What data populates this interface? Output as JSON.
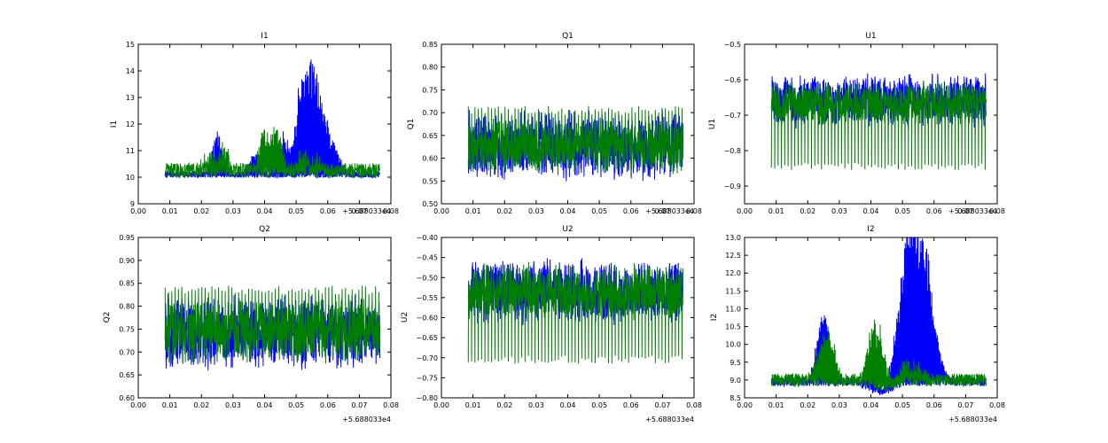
{
  "chart_data": [
    {
      "type": "line",
      "title": "I1",
      "xlabel": "",
      "ylabel": "I1",
      "xlim": [
        0.0,
        0.08
      ],
      "ylim": [
        9,
        15
      ],
      "x_ticks": [
        "0.00",
        "0.01",
        "0.02",
        "0.03",
        "0.04",
        "0.05",
        "0.06",
        "0.07",
        "0.08"
      ],
      "y_ticks": [
        "9",
        "10",
        "11",
        "12",
        "13",
        "14",
        "15"
      ],
      "x_offset_label": "+5.688033e4",
      "x_range": [
        0.0085,
        0.0765
      ],
      "grid": false,
      "series": [
        {
          "color": "#0000ff",
          "kind": "bursty",
          "base": 10.1,
          "noise": 0.12,
          "peaks": [
            [
              0.025,
              1.6
            ],
            [
              0.037,
              1.0
            ],
            [
              0.046,
              1.6
            ],
            [
              0.051,
              3.0
            ],
            [
              0.054,
              4.0
            ],
            [
              0.057,
              3.0
            ],
            [
              0.06,
              1.6
            ],
            [
              0.063,
              0.8
            ]
          ]
        },
        {
          "color": "#007f00",
          "kind": "bursty",
          "base": 10.25,
          "noise": 0.28,
          "peaks": [
            [
              0.022,
              0.6
            ],
            [
              0.027,
              1.1
            ],
            [
              0.04,
              1.6
            ],
            [
              0.044,
              1.7
            ],
            [
              0.052,
              0.8
            ],
            [
              0.057,
              0.5
            ]
          ]
        }
      ]
    },
    {
      "type": "line",
      "title": "Q1",
      "xlabel": "",
      "ylabel": "Q1",
      "xlim": [
        0.0,
        0.08
      ],
      "ylim": [
        0.5,
        0.85
      ],
      "x_ticks": [
        "0.00",
        "0.01",
        "0.02",
        "0.03",
        "0.04",
        "0.05",
        "0.06",
        "0.07",
        "0.08"
      ],
      "y_ticks": [
        "0.50",
        "0.55",
        "0.60",
        "0.65",
        "0.70",
        "0.75",
        "0.80",
        "0.85"
      ],
      "x_offset_label": "+5.688033e4",
      "x_range": [
        0.0085,
        0.0765
      ],
      "grid": false,
      "series": [
        {
          "color": "#0000ff",
          "kind": "band",
          "low": 0.545,
          "high": 0.71,
          "spike": 0.0
        },
        {
          "color": "#007f00",
          "kind": "band",
          "low": 0.56,
          "high": 0.69,
          "spike": 0.08
        }
      ]
    },
    {
      "type": "line",
      "title": "U1",
      "xlabel": "",
      "ylabel": "U1",
      "xlim": [
        0.0,
        0.08
      ],
      "ylim": [
        -0.95,
        -0.5
      ],
      "x_ticks": [
        "0.00",
        "0.01",
        "0.02",
        "0.03",
        "0.04",
        "0.05",
        "0.06",
        "0.07",
        "0.08"
      ],
      "y_ticks": [
        "−0.9",
        "−0.8",
        "−0.7",
        "−0.6",
        "−0.5"
      ],
      "y_tick_values": [
        -0.9,
        -0.8,
        -0.7,
        -0.6,
        -0.5
      ],
      "x_offset_label": "+5.688033e4",
      "x_range": [
        0.0085,
        0.0765
      ],
      "grid": false,
      "series": [
        {
          "color": "#0000ff",
          "kind": "band",
          "low": -0.74,
          "high": -0.58,
          "spike": 0.0
        },
        {
          "color": "#007f00",
          "kind": "band",
          "low": -0.73,
          "high": -0.6,
          "spike": -0.18
        }
      ]
    },
    {
      "type": "line",
      "title": "Q2",
      "xlabel": "",
      "ylabel": "Q2",
      "xlim": [
        0.0,
        0.08
      ],
      "ylim": [
        0.6,
        0.95
      ],
      "x_ticks": [
        "0.00",
        "0.01",
        "0.02",
        "0.03",
        "0.04",
        "0.05",
        "0.06",
        "0.07",
        "0.08"
      ],
      "y_ticks": [
        "0.60",
        "0.65",
        "0.70",
        "0.75",
        "0.80",
        "0.85",
        "0.90",
        "0.95"
      ],
      "x_offset_label": "+5.688033e4",
      "x_range": [
        0.0085,
        0.0765
      ],
      "grid": false,
      "series": [
        {
          "color": "#0000ff",
          "kind": "band",
          "low": 0.655,
          "high": 0.83,
          "spike": 0.0
        },
        {
          "color": "#007f00",
          "kind": "band",
          "low": 0.67,
          "high": 0.82,
          "spike": 0.09
        }
      ]
    },
    {
      "type": "line",
      "title": "U2",
      "xlabel": "",
      "ylabel": "U2",
      "xlim": [
        0.0,
        0.08
      ],
      "ylim": [
        -0.8,
        -0.4
      ],
      "x_ticks": [
        "0.00",
        "0.01",
        "0.02",
        "0.03",
        "0.04",
        "0.05",
        "0.06",
        "0.07",
        "0.08"
      ],
      "y_ticks": [
        "−0.80",
        "−0.75",
        "−0.70",
        "−0.65",
        "−0.60",
        "−0.55",
        "−0.50",
        "−0.45",
        "−0.40"
      ],
      "y_tick_values": [
        -0.8,
        -0.75,
        -0.7,
        -0.65,
        -0.6,
        -0.55,
        -0.5,
        -0.45,
        -0.4
      ],
      "x_offset_label": "+5.688033e4",
      "x_range": [
        0.0085,
        0.0765
      ],
      "grid": false,
      "series": [
        {
          "color": "#0000ff",
          "kind": "band",
          "low": -0.62,
          "high": -0.45,
          "spike": 0.0
        },
        {
          "color": "#007f00",
          "kind": "band",
          "low": -0.61,
          "high": -0.46,
          "spike": -0.17
        }
      ]
    },
    {
      "type": "line",
      "title": "I2",
      "xlabel": "",
      "ylabel": "I2",
      "xlim": [
        0.0,
        0.08
      ],
      "ylim": [
        8.5,
        13.0
      ],
      "x_ticks": [
        "0.00",
        "0.01",
        "0.02",
        "0.03",
        "0.04",
        "0.05",
        "0.06",
        "0.07",
        "0.08"
      ],
      "y_ticks": [
        "8.5",
        "9.0",
        "9.5",
        "10.0",
        "10.5",
        "11.0",
        "11.5",
        "12.0",
        "12.5",
        "13.0"
      ],
      "x_offset_label": "+5.688033e4",
      "x_range": [
        0.0085,
        0.0765
      ],
      "grid": false,
      "series": [
        {
          "color": "#0000ff",
          "kind": "bursty",
          "base": 8.95,
          "noise": 0.12,
          "dip": [
            0.036,
            0.05,
            -0.25
          ],
          "peaks": [
            [
              0.024,
              1.5
            ],
            [
              0.026,
              1.2
            ],
            [
              0.04,
              0.8
            ],
            [
              0.048,
              1.6
            ],
            [
              0.051,
              2.8
            ],
            [
              0.053,
              3.9
            ],
            [
              0.056,
              3.2
            ],
            [
              0.058,
              2.2
            ],
            [
              0.061,
              1.2
            ]
          ]
        },
        {
          "color": "#007f00",
          "kind": "bursty",
          "base": 9.0,
          "noise": 0.18,
          "dip": [
            0.038,
            0.05,
            -0.15
          ],
          "peaks": [
            [
              0.024,
              0.9
            ],
            [
              0.027,
              1.4
            ],
            [
              0.04,
              1.3
            ],
            [
              0.043,
              1.4
            ],
            [
              0.051,
              0.6
            ],
            [
              0.055,
              0.4
            ]
          ]
        }
      ]
    }
  ]
}
